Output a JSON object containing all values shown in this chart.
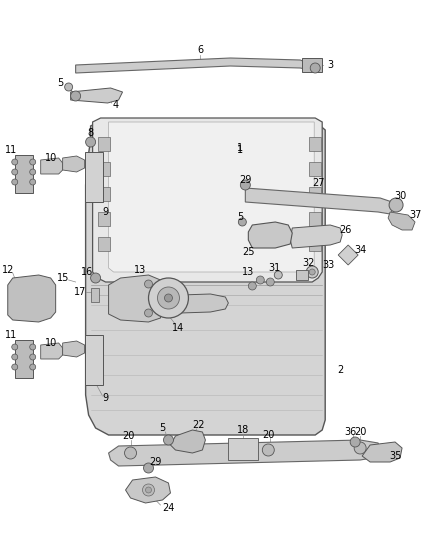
{
  "background_color": "#ffffff",
  "fig_width": 4.38,
  "fig_height": 5.33,
  "dpi": 100,
  "line_color": "#444444",
  "label_color": "#000000",
  "label_fontsize": 7.0
}
